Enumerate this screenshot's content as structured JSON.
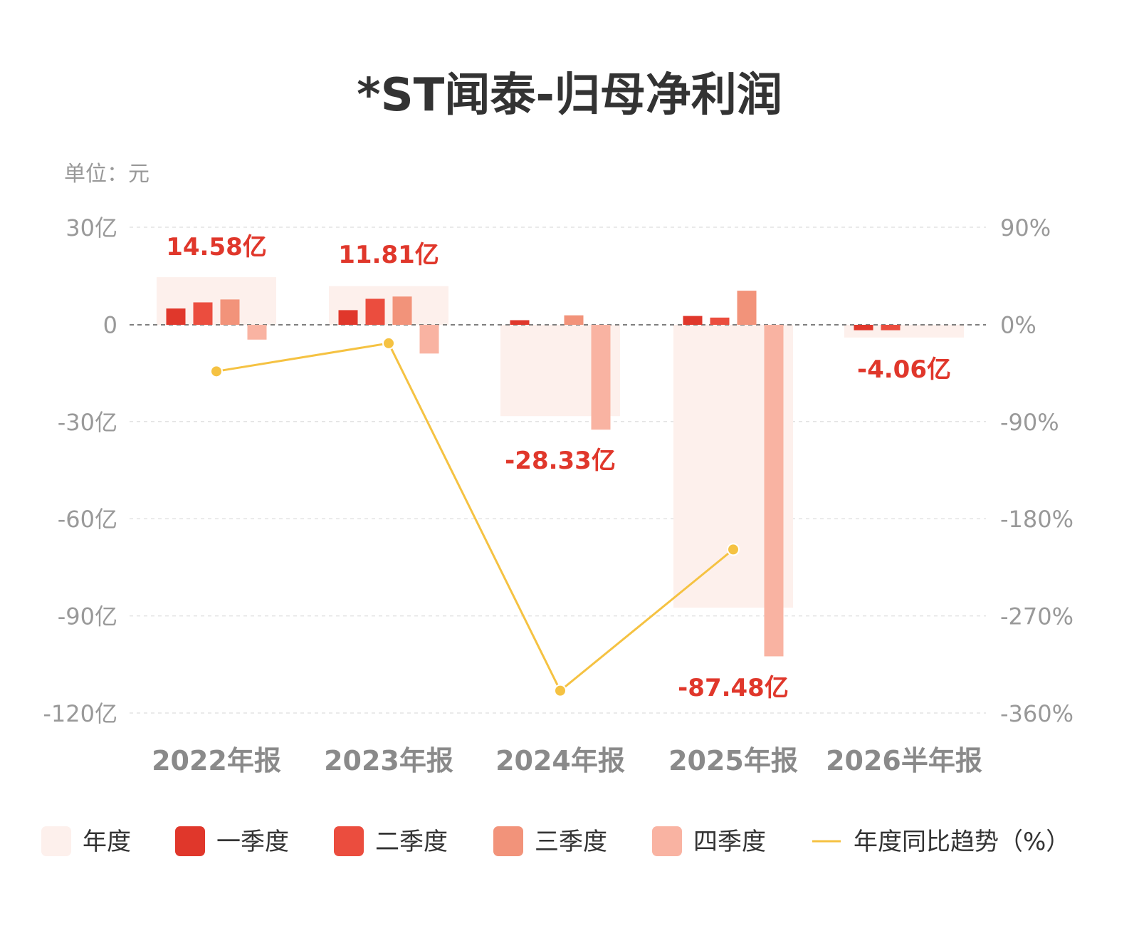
{
  "chart_data": {
    "type": "bar",
    "title": "*ST闻泰-归母净利润",
    "unit_label": "单位：元",
    "categories": [
      "2022年报",
      "2023年报",
      "2024年报",
      "2025年报",
      "2026半年报"
    ],
    "left_axis": {
      "ticks": [
        30,
        0,
        -30,
        -60,
        -90,
        -120
      ],
      "tick_labels": [
        "30亿",
        "0",
        "-30亿",
        "-60亿",
        "-90亿",
        "-120亿"
      ],
      "range": [
        -120,
        30
      ],
      "unit": "亿元"
    },
    "right_axis": {
      "ticks": [
        90,
        0,
        -90,
        -180,
        -270,
        -360
      ],
      "tick_labels": [
        "90%",
        "0%",
        "-90%",
        "-180%",
        "-270%",
        "-360%"
      ],
      "range": [
        -360,
        90
      ]
    },
    "series": [
      {
        "name": "年度",
        "color": "#fdf0ec",
        "values": [
          14.58,
          11.81,
          -28.33,
          -87.48,
          -4.06
        ]
      },
      {
        "name": "一季度",
        "color": "#e0372b",
        "values": [
          4.9,
          4.4,
          1.3,
          2.6,
          -1.8
        ]
      },
      {
        "name": "二季度",
        "color": "#eb4d3e",
        "values": [
          6.8,
          7.9,
          0,
          2.1,
          -1.8
        ]
      },
      {
        "name": "三季度",
        "color": "#f2937a",
        "values": [
          7.7,
          8.6,
          2.8,
          10.4,
          null
        ]
      },
      {
        "name": "四季度",
        "color": "#f9b3a2",
        "values": [
          -4.7,
          -9.0,
          -32.5,
          -102.5,
          null
        ]
      }
    ],
    "line": {
      "name": "年度同比趋势（%）",
      "color": "#f5c242",
      "values": [
        -43.5,
        -17.5,
        -339.3,
        -208.5,
        null
      ]
    },
    "data_labels": [
      "14.58亿",
      "11.81亿",
      "-28.33亿",
      "-87.48亿",
      "-4.06亿"
    ],
    "legend_position": "bottom",
    "grid": true
  }
}
